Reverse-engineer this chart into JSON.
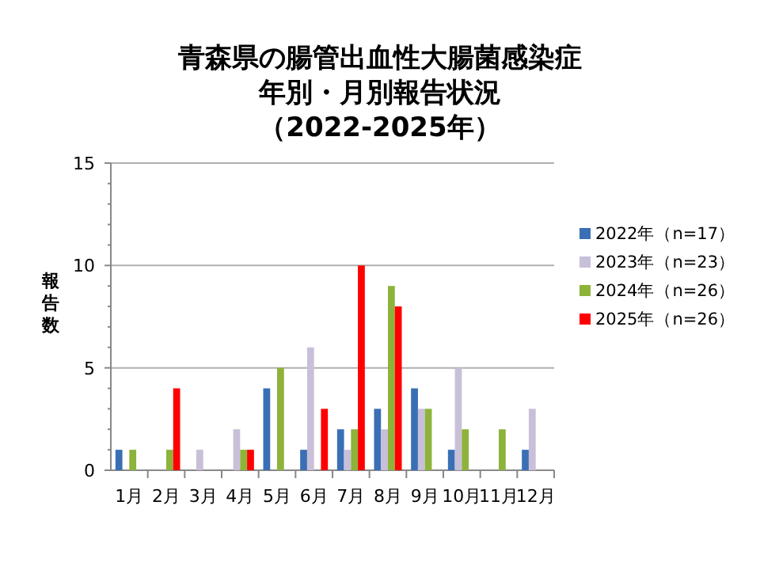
{
  "chart_data": {
    "type": "bar",
    "title": "青森県の腸管出血性大腸菌感染症",
    "subtitle": "年別・月別報告状況",
    "annotations": [
      "（2022-2025年）"
    ],
    "ylabel": "報告数",
    "categories": [
      "1月",
      "2月",
      "3月",
      "4月",
      "5月",
      "6月",
      "7月",
      "8月",
      "9月",
      "10月",
      "11月",
      "12月"
    ],
    "series": [
      {
        "name": "2022年（n=17）",
        "color": "#3a6fb5",
        "values": [
          1,
          0,
          0,
          0,
          4,
          1,
          2,
          3,
          4,
          1,
          0,
          1
        ]
      },
      {
        "name": "2023年（n=23）",
        "color": "#c8bfd9",
        "values": [
          0,
          0,
          1,
          2,
          0,
          6,
          1,
          2,
          3,
          5,
          0,
          3
        ]
      },
      {
        "name": "2024年（n=26）",
        "color": "#8db33a",
        "values": [
          1,
          1,
          0,
          1,
          5,
          0,
          2,
          9,
          3,
          2,
          2,
          0
        ]
      },
      {
        "name": "2025年（n=26）",
        "color": "#ff0000",
        "values": [
          0,
          4,
          0,
          1,
          0,
          3,
          10,
          8,
          0,
          0,
          0,
          0
        ]
      }
    ],
    "ylim": [
      0,
      15
    ],
    "yticks": [
      0,
      5,
      10,
      15
    ],
    "grid": "y",
    "legend": "right"
  }
}
